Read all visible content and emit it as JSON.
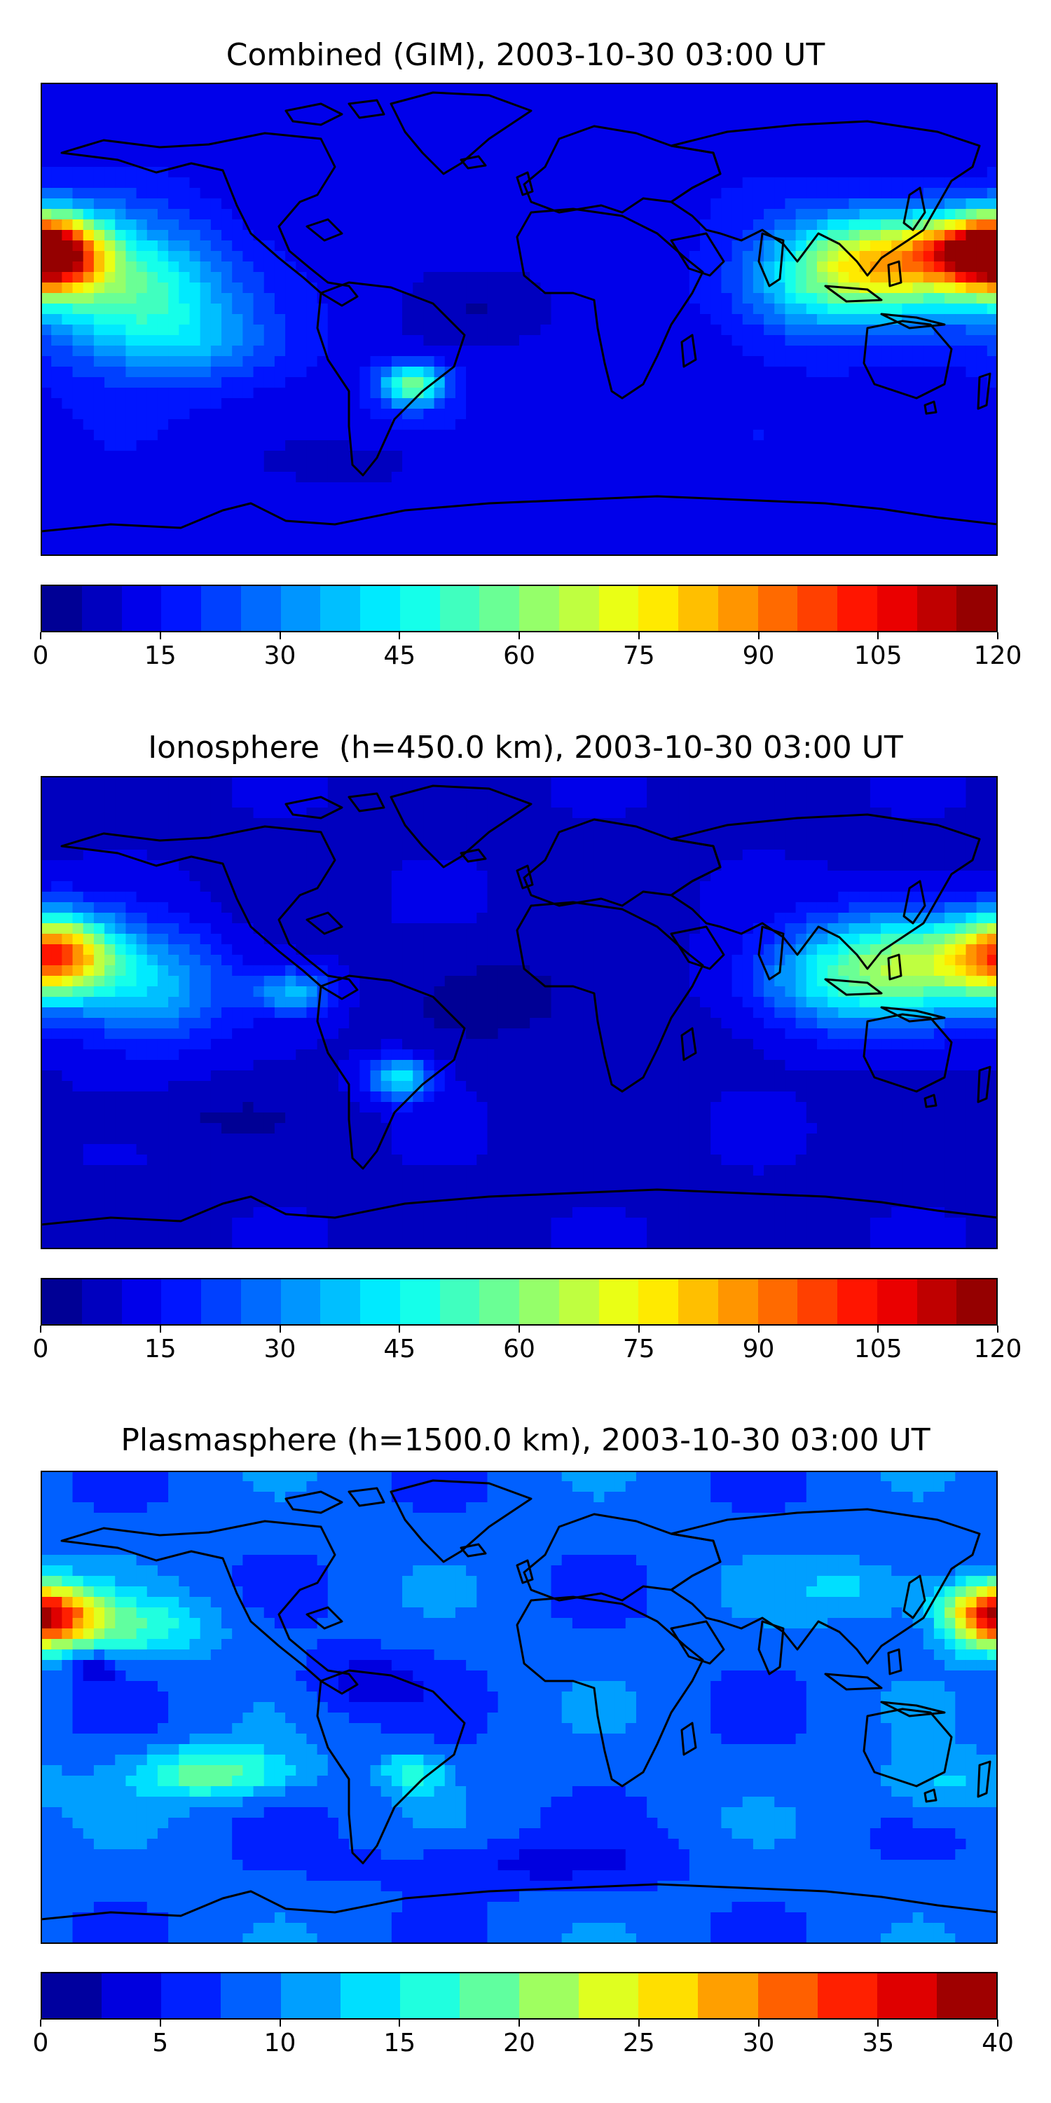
{
  "panels": [
    {
      "title": "Combined (GIM), 2003-10-30 03:00 UT",
      "vmin": 0,
      "vmax": 120,
      "levels": 24,
      "tick_labels": [
        "0",
        "15",
        "30",
        "45",
        "60",
        "75",
        "90",
        "105",
        "120"
      ],
      "base_value": 13,
      "blobs": [
        {
          "lon": -178,
          "lat": 25,
          "rlon": 22,
          "rlat": 15,
          "value": 95
        },
        {
          "lon": -145,
          "lat": 10,
          "rlon": 35,
          "rlat": 25,
          "value": 40
        },
        {
          "lon": 140,
          "lat": 22,
          "rlon": 35,
          "rlat": 18,
          "value": 65
        },
        {
          "lon": 170,
          "lat": 27,
          "rlon": 20,
          "rlat": 10,
          "value": 30
        },
        {
          "lon": 110,
          "lat": 10,
          "rlon": 30,
          "rlat": 20,
          "value": 20
        },
        {
          "lon": -40,
          "lat": -25,
          "rlon": 12,
          "rlat": 8,
          "value": 45
        },
        {
          "lon": -120,
          "lat": -10,
          "rlon": 30,
          "rlat": 15,
          "value": 12
        },
        {
          "lon": -10,
          "lat": 5,
          "rlon": 30,
          "rlat": 15,
          "value": -7
        },
        {
          "lon": -60,
          "lat": -55,
          "rlon": 30,
          "rlat": 8,
          "value": -6
        }
      ]
    },
    {
      "title": "Ionosphere  (h=450.0 km), 2003-10-30 03:00 UT",
      "vmin": 0,
      "vmax": 120,
      "levels": 24,
      "tick_labels": [
        "0",
        "15",
        "30",
        "45",
        "60",
        "75",
        "90",
        "105",
        "120"
      ],
      "base_value": 9,
      "blobs": [
        {
          "lon": -175,
          "lat": 22,
          "rlon": 22,
          "rlat": 15,
          "value": 75
        },
        {
          "lon": -140,
          "lat": 10,
          "rlon": 30,
          "rlat": 22,
          "value": 30
        },
        {
          "lon": 145,
          "lat": 18,
          "rlon": 35,
          "rlat": 20,
          "value": 52
        },
        {
          "lon": 110,
          "lat": 10,
          "rlon": 28,
          "rlat": 18,
          "value": 18
        },
        {
          "lon": -45,
          "lat": -25,
          "rlon": 12,
          "rlat": 8,
          "value": 35
        },
        {
          "lon": -85,
          "lat": 8,
          "rlon": 15,
          "rlat": 8,
          "value": 25
        },
        {
          "lon": 0,
          "lat": 5,
          "rlon": 35,
          "rlat": 18,
          "value": -6
        },
        {
          "lon": -120,
          "lat": -40,
          "rlon": 40,
          "rlat": 10,
          "value": -4
        }
      ]
    },
    {
      "title": "Plasmasphere (h=1500.0 km), 2003-10-30 03:00 UT",
      "vmin": 0,
      "vmax": 40,
      "levels": 16,
      "tick_labels": [
        "0",
        "5",
        "10",
        "15",
        "20",
        "25",
        "30",
        "35",
        "40"
      ],
      "base_value": 8.5,
      "blobs": [
        {
          "lon": -178,
          "lat": 35,
          "rlon": 20,
          "rlat": 12,
          "value": 15
        },
        {
          "lon": -145,
          "lat": 30,
          "rlon": 30,
          "rlat": 12,
          "value": 8
        },
        {
          "lon": -160,
          "lat": 15,
          "rlon": 8,
          "rlat": 6,
          "value": -7
        },
        {
          "lon": -115,
          "lat": -25,
          "rlon": 30,
          "rlat": 10,
          "value": 11
        },
        {
          "lon": 178,
          "lat": 35,
          "rlon": 18,
          "rlat": 12,
          "value": 14
        },
        {
          "lon": 130,
          "lat": 45,
          "rlon": 30,
          "rlat": 12,
          "value": 5
        },
        {
          "lon": 160,
          "lat": -30,
          "rlon": 25,
          "rlat": 12,
          "value": 5
        },
        {
          "lon": -60,
          "lat": 10,
          "rlon": 25,
          "rlat": 12,
          "value": -5
        },
        {
          "lon": -40,
          "lat": -25,
          "rlon": 12,
          "rlat": 8,
          "value": 8
        },
        {
          "lon": 0,
          "lat": -60,
          "rlon": 60,
          "rlat": 10,
          "value": -4
        }
      ]
    }
  ],
  "colormap": "jet"
}
